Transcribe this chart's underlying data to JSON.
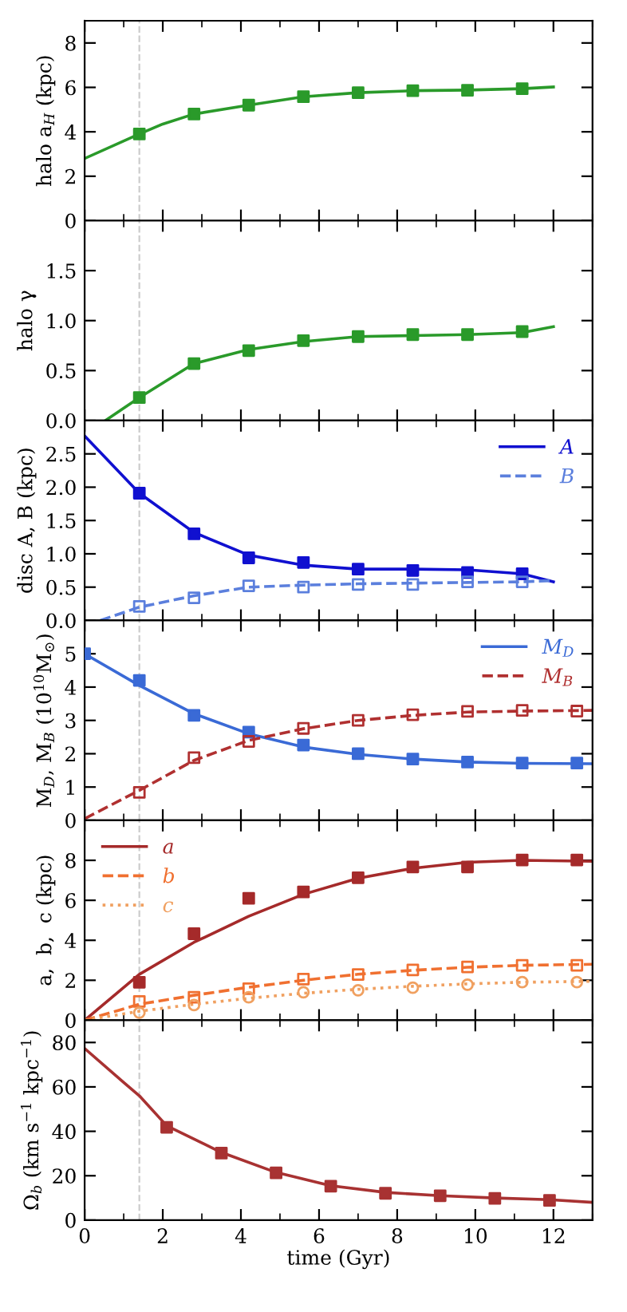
{
  "chart_data": [
    {
      "type": "line",
      "ylabel": "halo a$_{H}$ (kpc)",
      "xlim": [
        0,
        13
      ],
      "xticks": [
        0,
        2,
        4,
        6,
        8,
        10,
        12
      ],
      "ylim": [
        0,
        9
      ],
      "yticks": [
        0,
        2,
        4,
        6,
        8
      ],
      "tick_labels": "y",
      "grid": false,
      "legend": false,
      "ref_lines": [
        {
          "axis": "x",
          "value": 1.4,
          "color": "#cccccc",
          "line_style": "dashed"
        }
      ],
      "series": [
        {
          "color": "#2a9a2a",
          "line_style": "solid",
          "marker": "none",
          "x": [
            0,
            1.4,
            2,
            2.8,
            4.2,
            5.6,
            7,
            8.4,
            9.8,
            11.2,
            12
          ],
          "values": [
            2.8,
            3.9,
            4.35,
            4.8,
            5.2,
            5.58,
            5.76,
            5.85,
            5.88,
            5.94,
            6.02
          ]
        },
        {
          "type": "scatter",
          "color": "#2a9a2a",
          "marker": "square",
          "x": [
            1.4,
            2.8,
            4.2,
            5.6,
            7,
            8.4,
            9.8,
            11.2
          ],
          "values": [
            3.9,
            4.8,
            5.2,
            5.58,
            5.76,
            5.85,
            5.87,
            5.94
          ]
        }
      ]
    },
    {
      "type": "line",
      "ylabel": "halo γ",
      "xlim": [
        0,
        13
      ],
      "xticks": [
        0,
        2,
        4,
        6,
        8,
        10,
        12
      ],
      "ylim": [
        0,
        2
      ],
      "yticks": [
        {
          "value": 0,
          "label": "0.0"
        },
        {
          "value": 0.5,
          "label": "0.5"
        },
        {
          "value": 1,
          "label": "1.0"
        },
        {
          "value": 1.5,
          "label": "1.5"
        }
      ],
      "tick_labels": "y",
      "grid": false,
      "legend": false,
      "ref_lines": [
        {
          "axis": "x",
          "value": 1.4,
          "color": "#cccccc",
          "line_style": "dashed"
        }
      ],
      "series": [
        {
          "color": "#2a9a2a",
          "line_style": "solid",
          "marker": "none",
          "x": [
            0.53,
            1.4,
            2.8,
            4.2,
            5.6,
            7,
            8.4,
            9.8,
            11.2,
            12
          ],
          "values": [
            0,
            0.23,
            0.57,
            0.71,
            0.79,
            0.84,
            0.85,
            0.86,
            0.88,
            0.94
          ]
        },
        {
          "type": "scatter",
          "color": "#2a9a2a",
          "marker": "square",
          "x": [
            1.4,
            2.8,
            4.2,
            5.6,
            7,
            8.4,
            9.8,
            11.2
          ],
          "values": [
            0.23,
            0.57,
            0.7,
            0.8,
            0.84,
            0.86,
            0.86,
            0.89
          ]
        }
      ]
    },
    {
      "type": "line",
      "ylabel": "disc A, B (kpc)",
      "xlim": [
        0,
        13
      ],
      "xticks": [
        0,
        2,
        4,
        6,
        8,
        10,
        12
      ],
      "ylim": [
        0,
        3
      ],
      "yticks": [
        {
          "value": 0,
          "label": "0.0"
        },
        {
          "value": 0.5,
          "label": "0.5"
        },
        {
          "value": 1,
          "label": "1.0"
        },
        {
          "value": 1.5,
          "label": "1.5"
        },
        {
          "value": 2,
          "label": "2.0"
        },
        {
          "value": 2.5,
          "label": "2.5"
        }
      ],
      "tick_labels": "y",
      "grid": false,
      "legend": "top right",
      "ref_lines": [
        {
          "axis": "x",
          "value": 1.4,
          "color": "#cccccc",
          "line_style": "dashed"
        }
      ],
      "series": [
        {
          "name": "A",
          "color": "#1010d0",
          "line_style": "solid",
          "marker": "none",
          "x": [
            0,
            1.4,
            2.8,
            4.2,
            5.6,
            7,
            8.4,
            9.8,
            11.2,
            12
          ],
          "values": [
            2.77,
            1.91,
            1.32,
            0.98,
            0.83,
            0.77,
            0.77,
            0.76,
            0.7,
            0.58
          ]
        },
        {
          "type": "scatter",
          "color": "#1010d0",
          "marker": "square",
          "x": [
            1.4,
            2.8,
            4.2,
            5.6,
            7,
            8.4,
            9.8,
            11.2
          ],
          "values": [
            1.91,
            1.3,
            0.94,
            0.87,
            0.77,
            0.75,
            0.72,
            0.7
          ]
        },
        {
          "name": "B",
          "color": "#5b7fdd",
          "line_style": "dashed",
          "marker": "none",
          "x": [
            0.4,
            1.4,
            2.8,
            4.2,
            5.6,
            7,
            8.4,
            9.8,
            11.2,
            12
          ],
          "values": [
            0,
            0.2,
            0.37,
            0.5,
            0.53,
            0.55,
            0.56,
            0.57,
            0.58,
            0.6
          ]
        },
        {
          "type": "scatter",
          "color": "#5b7fdd",
          "marker": "square",
          "x": [
            1.4,
            2.8,
            4.2,
            5.6,
            7,
            8.4,
            9.8,
            11.2
          ],
          "values": [
            0.21,
            0.34,
            0.52,
            0.5,
            0.54,
            0.54,
            0.58,
            0.58
          ]
        }
      ]
    },
    {
      "type": "line",
      "ylabel": "M$_{D}$, M$_{B}$ (10$^{10}$M$_{⊙}$)",
      "xlim": [
        0,
        13
      ],
      "xticks": [
        0,
        2,
        4,
        6,
        8,
        10,
        12
      ],
      "ylim": [
        0,
        6
      ],
      "yticks": [
        0,
        1,
        2,
        3,
        4,
        5
      ],
      "tick_labels": "y",
      "grid": false,
      "legend": "top right",
      "ref_lines": [
        {
          "axis": "x",
          "value": 1.4,
          "color": "#cccccc",
          "line_style": "dashed"
        }
      ],
      "series": [
        {
          "name": "M$_{D}$",
          "color": "#3a6ad6",
          "line_style": "solid",
          "marker": "none",
          "x": [
            0,
            1.4,
            2.8,
            4.2,
            5.6,
            7,
            8.4,
            9.8,
            11.2,
            13
          ],
          "values": [
            5.0,
            4.05,
            3.2,
            2.6,
            2.2,
            1.98,
            1.84,
            1.75,
            1.71,
            1.7
          ]
        },
        {
          "type": "scatter",
          "color": "#3a6ad6",
          "marker": "square",
          "x": [
            0,
            1.4,
            2.8,
            4.2,
            5.6,
            7,
            8.4,
            9.8,
            11.2,
            12.6
          ],
          "values": [
            5.0,
            4.2,
            3.15,
            2.65,
            2.26,
            2.0,
            1.84,
            1.75,
            1.72,
            1.72
          ]
        },
        {
          "name": "M$_{B}$",
          "color": "#b03030",
          "line_style": "dashed",
          "marker": "none",
          "x": [
            0,
            1.4,
            2.8,
            4.2,
            5.6,
            7,
            8.4,
            9.8,
            11.2,
            13
          ],
          "values": [
            0.05,
            0.9,
            1.8,
            2.4,
            2.75,
            3.0,
            3.15,
            3.25,
            3.28,
            3.3
          ]
        },
        {
          "type": "scatter",
          "color": "#b03030",
          "marker": "square",
          "x": [
            1.4,
            2.8,
            4.2,
            5.6,
            7,
            8.4,
            9.8,
            11.2,
            12.6
          ],
          "values": [
            0.84,
            1.88,
            2.37,
            2.76,
            3.0,
            3.17,
            3.27,
            3.3,
            3.28
          ]
        }
      ]
    },
    {
      "type": "line",
      "ylabel": "a,  b,  c (kpc)",
      "xlim": [
        0,
        13
      ],
      "xticks": [
        0,
        2,
        4,
        6,
        8,
        10,
        12
      ],
      "ylim": [
        0,
        10
      ],
      "yticks": [
        0,
        2,
        4,
        6,
        8
      ],
      "tick_labels": "y",
      "grid": false,
      "legend": "top left",
      "ref_lines": [
        {
          "axis": "x",
          "value": 1.4,
          "color": "#cccccc",
          "line_style": "dashed"
        }
      ],
      "series": [
        {
          "name": "a",
          "color": "#a52a2a",
          "line_style": "solid",
          "marker": "none",
          "x": [
            0,
            1.4,
            2.8,
            4.2,
            5.6,
            7,
            8.4,
            9.8,
            11.2,
            13
          ],
          "values": [
            0,
            2.3,
            3.9,
            5.2,
            6.3,
            7.1,
            7.6,
            7.9,
            8.0,
            7.95
          ]
        },
        {
          "type": "scatter",
          "color": "#a52a2a",
          "marker": "square",
          "x": [
            1.4,
            2.8,
            4.2,
            5.6,
            7,
            8.4,
            9.8,
            11.2,
            12.6
          ],
          "values": [
            1.9,
            4.33,
            6.1,
            6.42,
            7.13,
            7.67,
            7.67,
            8.02,
            8.02
          ]
        },
        {
          "name": "b",
          "color": "#f07030",
          "line_style": "dashed",
          "marker": "none",
          "x": [
            0,
            1.4,
            2.8,
            4.2,
            5.6,
            7,
            8.4,
            9.8,
            11.2,
            13
          ],
          "values": [
            0,
            0.8,
            1.25,
            1.65,
            2.0,
            2.3,
            2.5,
            2.65,
            2.75,
            2.8
          ]
        },
        {
          "type": "scatter",
          "color": "#f07030",
          "marker": "square",
          "x": [
            1.4,
            2.8,
            4.2,
            5.6,
            7,
            8.4,
            9.8,
            11.2,
            12.6
          ],
          "values": [
            0.94,
            1.15,
            1.58,
            2.06,
            2.29,
            2.52,
            2.67,
            2.75,
            2.75
          ]
        },
        {
          "name": "c",
          "color": "#f0a060",
          "line_style": "dotted",
          "marker": "none",
          "x": [
            0,
            1.4,
            2.8,
            4.2,
            5.6,
            7,
            8.4,
            9.8,
            11.2,
            13
          ],
          "values": [
            0,
            0.45,
            0.8,
            1.1,
            1.35,
            1.55,
            1.7,
            1.82,
            1.9,
            1.95
          ]
        },
        {
          "type": "scatter",
          "color": "#f0a060",
          "marker": "circle",
          "x": [
            1.4,
            2.8,
            4.2,
            5.6,
            7,
            8.4,
            9.8,
            11.2,
            12.6
          ],
          "values": [
            0.38,
            0.76,
            1.15,
            1.4,
            1.5,
            1.63,
            1.78,
            1.91,
            1.91
          ]
        }
      ]
    },
    {
      "type": "line",
      "ylabel": "Ω$_{b}$ (km s$^{−1}$ kpc$^{−1}$)",
      "xlabel": "time (Gyr)",
      "xlim": [
        0,
        13
      ],
      "xticks": [
        0,
        2,
        4,
        6,
        8,
        10,
        12
      ],
      "ylim": [
        0,
        90
      ],
      "yticks": [
        0,
        20,
        40,
        60,
        80
      ],
      "grid": false,
      "legend": false,
      "ref_lines": [
        {
          "axis": "x",
          "value": 1.4,
          "color": "#cccccc",
          "line_style": "dashed"
        }
      ],
      "series": [
        {
          "color": "#a83232",
          "line_style": "solid",
          "marker": "none",
          "x": [
            0,
            1,
            1.4,
            2.1,
            3.5,
            4.9,
            6.3,
            7.7,
            9.1,
            10.5,
            11.9,
            13
          ],
          "values": [
            77.3,
            62,
            56,
            42.5,
            30.5,
            21.5,
            15.5,
            12.5,
            11,
            10,
            9.2,
            8
          ]
        },
        {
          "type": "scatter",
          "color": "#a83232",
          "marker": "square",
          "x": [
            2.1,
            3.5,
            4.9,
            6.3,
            7.7,
            9.1,
            10.5,
            11.9
          ],
          "values": [
            41.8,
            30.2,
            21.3,
            15.3,
            12.1,
            11.0,
            9.8,
            8.9
          ]
        }
      ]
    }
  ]
}
